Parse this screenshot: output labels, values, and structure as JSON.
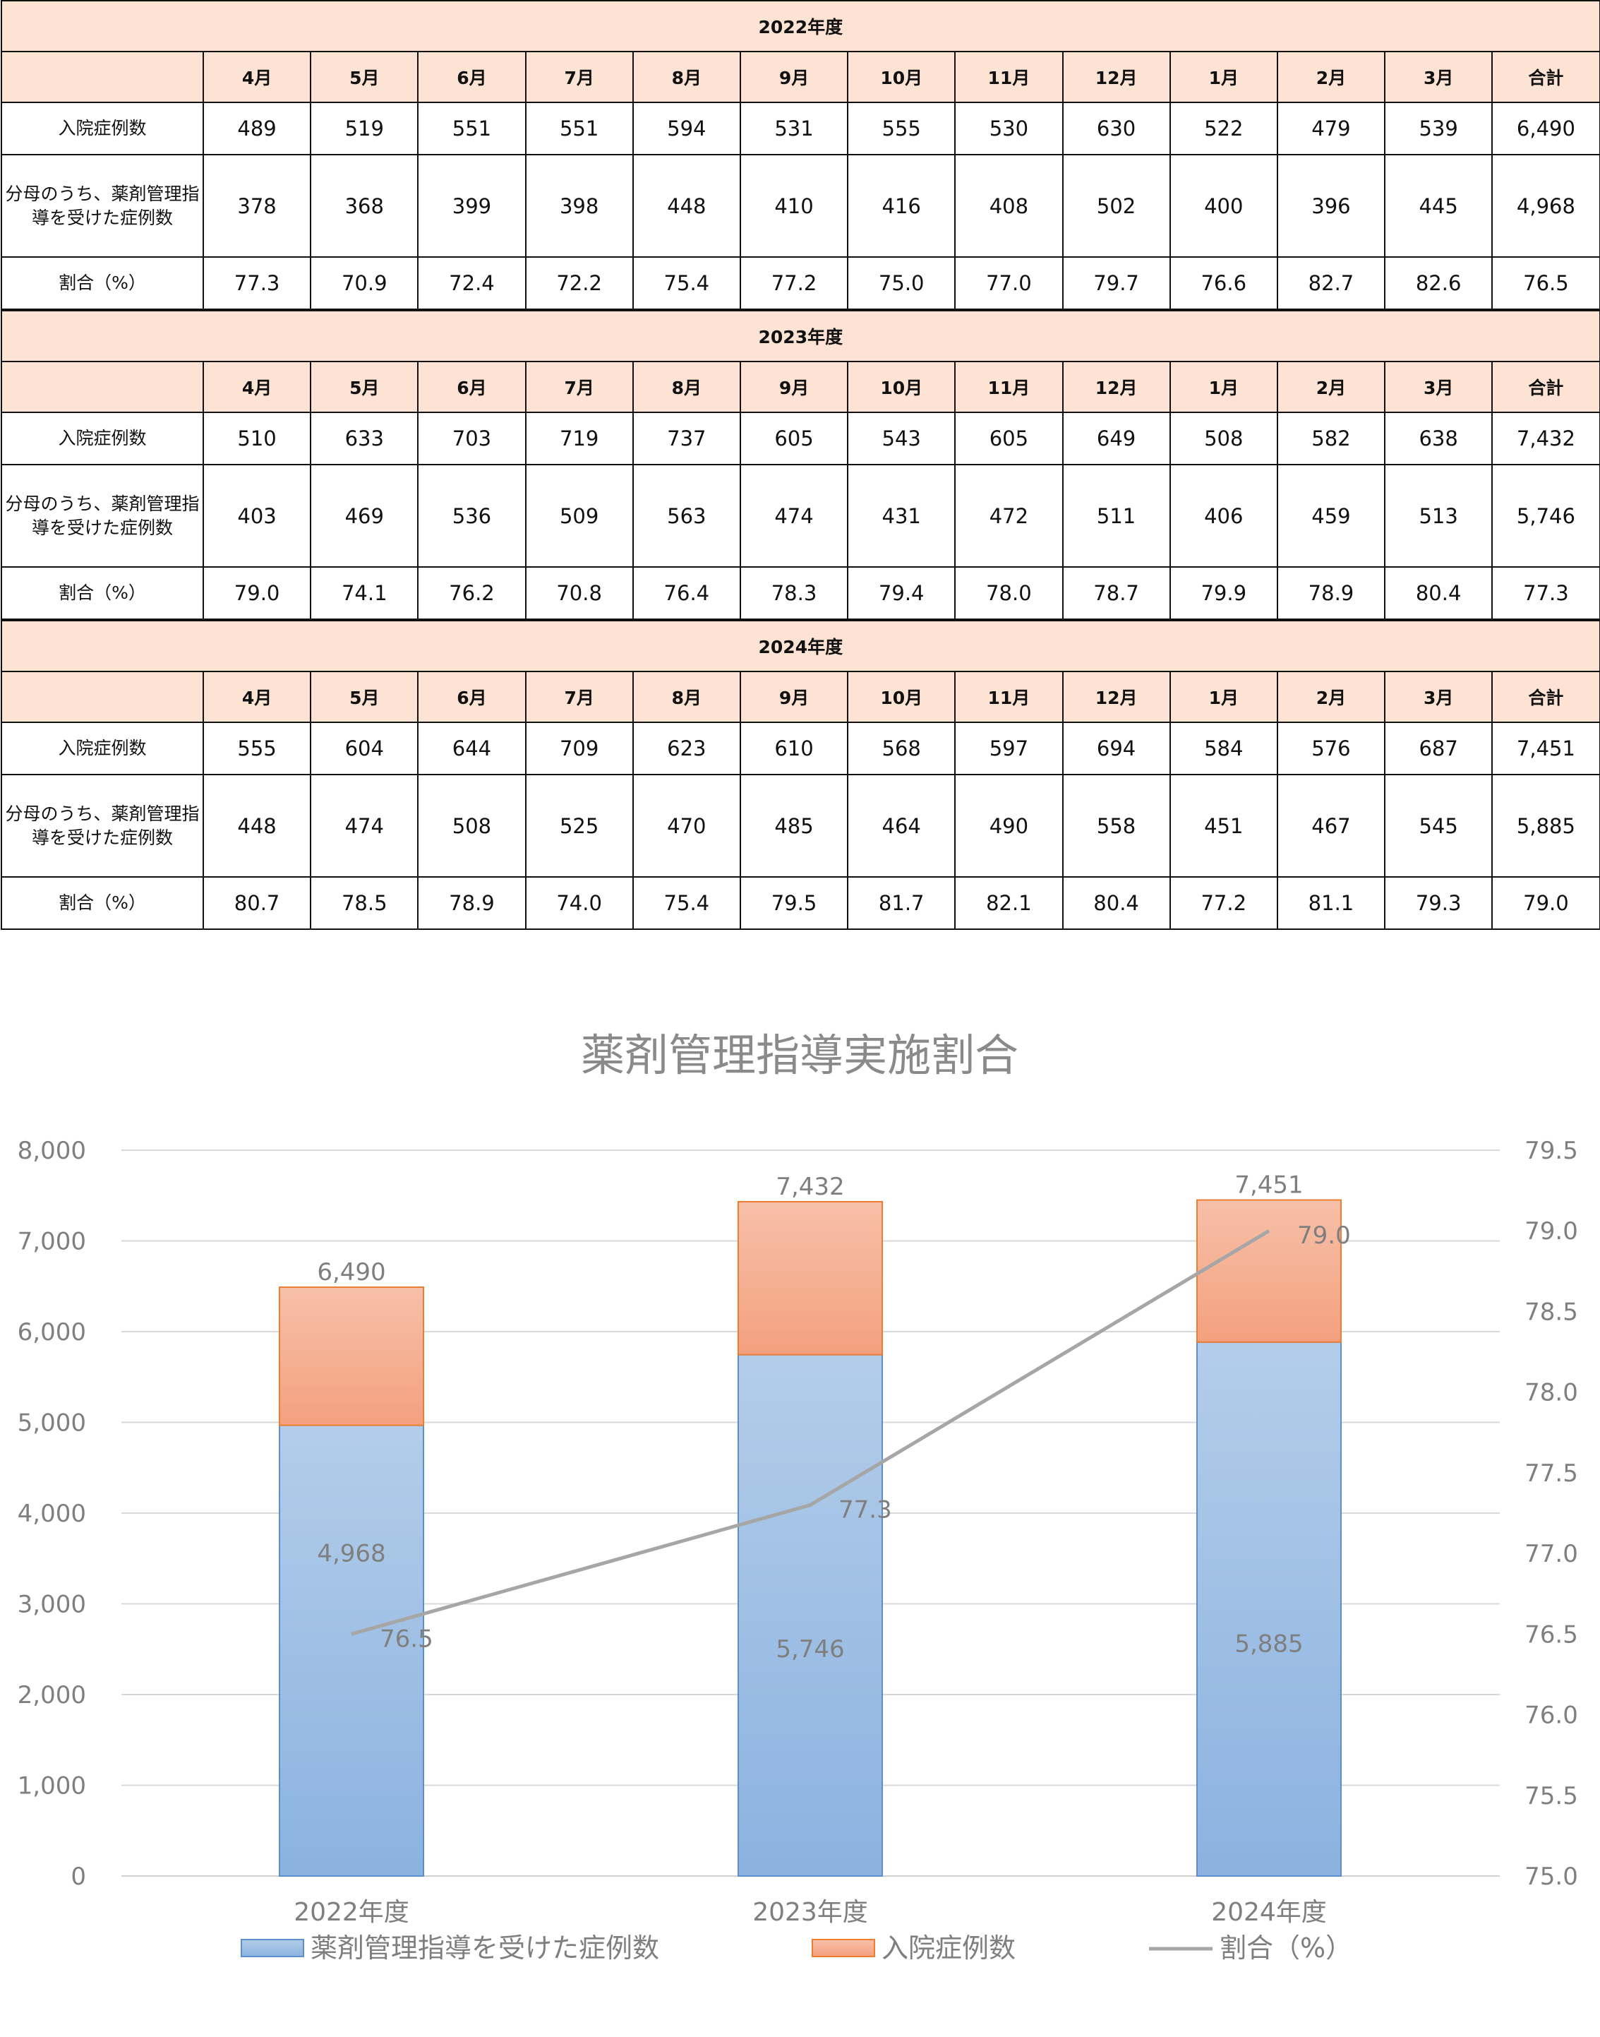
{
  "tables": [
    {
      "year_label": "2022年度",
      "months": [
        "4月",
        "5月",
        "6月",
        "7月",
        "8月",
        "9月",
        "10月",
        "11月",
        "12月",
        "1月",
        "2月",
        "3月",
        "合計"
      ],
      "rows": [
        {
          "label": "入院症例数",
          "values": [
            "489",
            "519",
            "551",
            "551",
            "594",
            "531",
            "555",
            "530",
            "630",
            "522",
            "479",
            "539",
            "6,490"
          ]
        },
        {
          "label": "分母のうち、薬剤管理指導を受けた症例数",
          "values": [
            "378",
            "368",
            "399",
            "398",
            "448",
            "410",
            "416",
            "408",
            "502",
            "400",
            "396",
            "445",
            "4,968"
          ]
        },
        {
          "label": "割合（%）",
          "values": [
            "77.3",
            "70.9",
            "72.4",
            "72.2",
            "75.4",
            "77.2",
            "75.0",
            "77.0",
            "79.7",
            "76.6",
            "82.7",
            "82.6",
            "76.5"
          ]
        }
      ]
    },
    {
      "year_label": "2023年度",
      "months": [
        "4月",
        "5月",
        "6月",
        "7月",
        "8月",
        "9月",
        "10月",
        "11月",
        "12月",
        "1月",
        "2月",
        "3月",
        "合計"
      ],
      "rows": [
        {
          "label": "入院症例数",
          "values": [
            "510",
            "633",
            "703",
            "719",
            "737",
            "605",
            "543",
            "605",
            "649",
            "508",
            "582",
            "638",
            "7,432"
          ]
        },
        {
          "label": "分母のうち、薬剤管理指導を受けた症例数",
          "values": [
            "403",
            "469",
            "536",
            "509",
            "563",
            "474",
            "431",
            "472",
            "511",
            "406",
            "459",
            "513",
            "5,746"
          ]
        },
        {
          "label": "割合（%）",
          "values": [
            "79.0",
            "74.1",
            "76.2",
            "70.8",
            "76.4",
            "78.3",
            "79.4",
            "78.0",
            "78.7",
            "79.9",
            "78.9",
            "80.4",
            "77.3"
          ]
        }
      ]
    },
    {
      "year_label": "2024年度",
      "months": [
        "4月",
        "5月",
        "6月",
        "7月",
        "8月",
        "9月",
        "10月",
        "11月",
        "12月",
        "1月",
        "2月",
        "3月",
        "合計"
      ],
      "rows": [
        {
          "label": "入院症例数",
          "values": [
            "555",
            "604",
            "644",
            "709",
            "623",
            "610",
            "568",
            "597",
            "694",
            "584",
            "576",
            "687",
            "7,451"
          ]
        },
        {
          "label": "分母のうち、薬剤管理指導を受けた症例数",
          "values": [
            "448",
            "474",
            "508",
            "525",
            "470",
            "485",
            "464",
            "490",
            "558",
            "451",
            "467",
            "545",
            "5,885"
          ]
        },
        {
          "label": "割合（%）",
          "values": [
            "80.7",
            "78.5",
            "78.9",
            "74.0",
            "75.4",
            "79.5",
            "81.7",
            "82.1",
            "80.4",
            "77.2",
            "81.1",
            "79.3",
            "79.0"
          ]
        }
      ]
    }
  ],
  "chart_data": {
    "type": "bar+line",
    "title": "薬剤管理指導実施割合",
    "categories": [
      "2022年度",
      "2023年度",
      "2024年度"
    ],
    "series": [
      {
        "name": "薬剤管理指導を受けた症例数",
        "kind": "bar",
        "axis": "left",
        "values": [
          4968,
          5746,
          5885
        ],
        "labels": [
          "4,968",
          "5,746",
          "5,885"
        ],
        "color": "#9dbde6"
      },
      {
        "name": "入院症例数",
        "kind": "bar-total",
        "axis": "left",
        "values": [
          6490,
          7432,
          7451
        ],
        "labels": [
          "6,490",
          "7,432",
          "7,451"
        ],
        "color": "#f5b59a"
      },
      {
        "name": "割合（%）",
        "kind": "line",
        "axis": "right",
        "values": [
          76.5,
          77.3,
          79.0
        ],
        "labels": [
          "76.5",
          "77.3",
          "79.0"
        ],
        "color": "#a6a6a6"
      }
    ],
    "y_left": {
      "min": 0,
      "max": 8000,
      "step": 1000,
      "tick_labels": [
        "0",
        "1,000",
        "2,000",
        "3,000",
        "4,000",
        "5,000",
        "6,000",
        "7,000",
        "8,000"
      ]
    },
    "y_right": {
      "min": 75.0,
      "max": 79.5,
      "step": 0.5,
      "tick_labels": [
        "75.0",
        "75.5",
        "76.0",
        "76.5",
        "77.0",
        "77.5",
        "78.0",
        "78.5",
        "79.0",
        "79.5"
      ]
    },
    "legend": [
      "薬剤管理指導を受けた症例数",
      "入院症例数",
      "割合（%）"
    ],
    "legend_position": "bottom",
    "grid": true
  }
}
